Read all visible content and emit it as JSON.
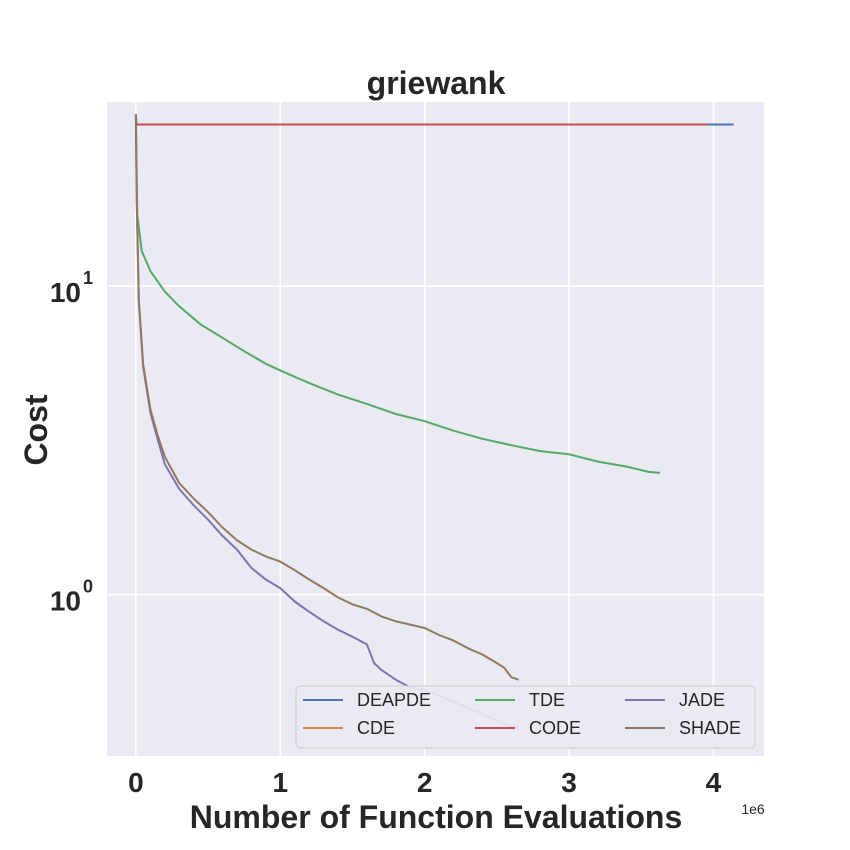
{
  "chart_data": {
    "type": "line",
    "title": "griewank",
    "xlabel": "Number of Function Evaluations",
    "ylabel": "Cost",
    "x_offset_label": "1e6",
    "xscale": "linear",
    "yscale": "log",
    "xlim": [
      -0.2,
      4.35
    ],
    "ylim": [
      0.3,
      39.5
    ],
    "x_ticks": [
      0,
      1,
      2,
      3,
      4
    ],
    "x_tick_labels": [
      "0",
      "1",
      "2",
      "3",
      "4"
    ],
    "y_ticks": [
      1,
      10
    ],
    "y_tick_labels": [
      {
        "base": "10",
        "exp": "0"
      },
      {
        "base": "10",
        "exp": "1"
      }
    ],
    "grid": true,
    "legend_position": "lower right",
    "legend_columns": 3,
    "series": [
      {
        "name": "DEAPDE",
        "color": "#4c72b0",
        "x": [
          0,
          0.003,
          4.14
        ],
        "y": [
          36,
          33.4,
          33.4
        ]
      },
      {
        "name": "CDE",
        "color": "#dd8452",
        "x": [
          0,
          0.003,
          3.96
        ],
        "y": [
          36,
          33.4,
          33.4
        ]
      },
      {
        "name": "TDE",
        "color": "#55a868",
        "x": [
          0,
          0.01,
          0.04,
          0.1,
          0.2,
          0.3,
          0.45,
          0.6,
          0.75,
          0.9,
          1.05,
          1.2,
          1.4,
          1.6,
          1.8,
          2.0,
          2.2,
          2.4,
          2.6,
          2.8,
          3.0,
          3.2,
          3.4,
          3.55,
          3.63
        ],
        "y": [
          34,
          17,
          13,
          11.2,
          9.6,
          8.6,
          7.5,
          6.8,
          6.15,
          5.6,
          5.2,
          4.85,
          4.45,
          4.15,
          3.85,
          3.65,
          3.4,
          3.2,
          3.05,
          2.92,
          2.85,
          2.7,
          2.6,
          2.5,
          2.48
        ]
      },
      {
        "name": "CODE",
        "color": "#c44e52",
        "x": [
          0,
          0.003,
          3.96
        ],
        "y": [
          36,
          33.4,
          33.4
        ]
      },
      {
        "name": "JADE",
        "color": "#8172b3",
        "x": [
          0,
          0.005,
          0.02,
          0.05,
          0.1,
          0.15,
          0.2,
          0.3,
          0.4,
          0.5,
          0.6,
          0.7,
          0.8,
          0.9,
          1.0,
          1.1,
          1.2,
          1.3,
          1.4,
          1.5,
          1.6,
          1.65,
          1.7,
          1.8,
          1.9,
          2.0,
          2.1,
          2.2,
          2.3,
          2.4,
          2.5,
          2.6,
          2.65
        ],
        "y": [
          36,
          20,
          9,
          5.5,
          3.9,
          3.2,
          2.65,
          2.2,
          1.95,
          1.75,
          1.55,
          1.4,
          1.22,
          1.12,
          1.05,
          0.95,
          0.88,
          0.82,
          0.77,
          0.73,
          0.69,
          0.6,
          0.57,
          0.53,
          0.5,
          0.49,
          0.47,
          0.45,
          0.43,
          0.41,
          0.39,
          0.375,
          0.37
        ]
      },
      {
        "name": "SHADE",
        "color": "#937860",
        "x": [
          0,
          0.005,
          0.02,
          0.05,
          0.1,
          0.15,
          0.2,
          0.3,
          0.4,
          0.5,
          0.6,
          0.7,
          0.8,
          0.9,
          1.0,
          1.1,
          1.2,
          1.3,
          1.4,
          1.5,
          1.6,
          1.7,
          1.8,
          1.9,
          2.0,
          2.1,
          2.2,
          2.3,
          2.4,
          2.5,
          2.55,
          2.6,
          2.65
        ],
        "y": [
          36,
          20,
          9,
          5.6,
          4.0,
          3.3,
          2.8,
          2.3,
          2.05,
          1.85,
          1.65,
          1.5,
          1.4,
          1.33,
          1.28,
          1.2,
          1.12,
          1.05,
          0.98,
          0.93,
          0.9,
          0.85,
          0.82,
          0.8,
          0.78,
          0.74,
          0.71,
          0.67,
          0.64,
          0.6,
          0.58,
          0.54,
          0.53
        ]
      }
    ]
  }
}
